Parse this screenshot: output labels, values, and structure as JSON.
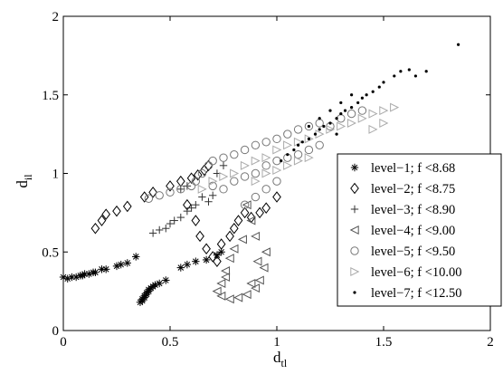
{
  "chart_data": {
    "type": "scatter",
    "xlabel": "d",
    "xlabel_sub": "tl",
    "ylabel": "d",
    "ylabel_sub": "il",
    "xlim": [
      0,
      2
    ],
    "ylim": [
      0,
      2
    ],
    "xticks": [
      "0",
      "0.5",
      "1",
      "1.5",
      "2"
    ],
    "yticks": [
      "0",
      "0.5",
      "1",
      "1.5",
      "2"
    ],
    "grid": false,
    "legend_position": "right",
    "series": [
      {
        "name": "level−1; f <8.68",
        "marker": "asterisk",
        "color": "#000000",
        "points": [
          [
            0.0,
            0.34
          ],
          [
            0.02,
            0.33
          ],
          [
            0.04,
            0.34
          ],
          [
            0.06,
            0.34
          ],
          [
            0.08,
            0.35
          ],
          [
            0.09,
            0.35
          ],
          [
            0.1,
            0.36
          ],
          [
            0.12,
            0.36
          ],
          [
            0.14,
            0.37
          ],
          [
            0.15,
            0.37
          ],
          [
            0.18,
            0.39
          ],
          [
            0.2,
            0.39
          ],
          [
            0.25,
            0.41
          ],
          [
            0.27,
            0.42
          ],
          [
            0.3,
            0.43
          ],
          [
            0.34,
            0.47
          ],
          [
            0.36,
            0.18
          ],
          [
            0.37,
            0.19
          ],
          [
            0.37,
            0.2
          ],
          [
            0.38,
            0.21
          ],
          [
            0.38,
            0.22
          ],
          [
            0.39,
            0.23
          ],
          [
            0.39,
            0.24
          ],
          [
            0.4,
            0.25
          ],
          [
            0.4,
            0.26
          ],
          [
            0.41,
            0.27
          ],
          [
            0.42,
            0.28
          ],
          [
            0.43,
            0.29
          ],
          [
            0.45,
            0.3
          ],
          [
            0.48,
            0.32
          ],
          [
            0.55,
            0.4
          ],
          [
            0.58,
            0.42
          ],
          [
            0.62,
            0.44
          ],
          [
            0.67,
            0.45
          ],
          [
            0.72,
            0.48
          ],
          [
            0.74,
            0.5
          ]
        ]
      },
      {
        "name": "level−2; f <8.75",
        "marker": "diamond",
        "color": "#000000",
        "points": [
          [
            0.15,
            0.65
          ],
          [
            0.18,
            0.7
          ],
          [
            0.2,
            0.74
          ],
          [
            0.25,
            0.76
          ],
          [
            0.3,
            0.79
          ],
          [
            0.38,
            0.85
          ],
          [
            0.42,
            0.88
          ],
          [
            0.5,
            0.92
          ],
          [
            0.55,
            0.95
          ],
          [
            0.6,
            0.97
          ],
          [
            0.63,
            0.99
          ],
          [
            0.66,
            1.02
          ],
          [
            0.68,
            1.05
          ],
          [
            0.58,
            0.8
          ],
          [
            0.62,
            0.7
          ],
          [
            0.64,
            0.6
          ],
          [
            0.67,
            0.52
          ],
          [
            0.7,
            0.47
          ],
          [
            0.72,
            0.44
          ],
          [
            0.74,
            0.55
          ],
          [
            0.78,
            0.6
          ],
          [
            0.8,
            0.65
          ],
          [
            0.82,
            0.7
          ],
          [
            0.85,
            0.75
          ],
          [
            0.88,
            0.72
          ],
          [
            0.92,
            0.75
          ],
          [
            0.95,
            0.78
          ],
          [
            1.0,
            0.85
          ]
        ]
      },
      {
        "name": "level−3; f <8.90",
        "marker": "plus",
        "color": "#333333",
        "points": [
          [
            0.42,
            0.62
          ],
          [
            0.45,
            0.64
          ],
          [
            0.48,
            0.65
          ],
          [
            0.5,
            0.68
          ],
          [
            0.52,
            0.7
          ],
          [
            0.55,
            0.72
          ],
          [
            0.58,
            0.76
          ],
          [
            0.6,
            0.78
          ],
          [
            0.62,
            0.8
          ],
          [
            0.65,
            0.85
          ],
          [
            0.68,
            0.82
          ],
          [
            0.7,
            0.86
          ],
          [
            0.55,
            0.9
          ],
          [
            0.58,
            0.92
          ],
          [
            0.72,
            1.0
          ],
          [
            0.75,
            1.05
          ]
        ]
      },
      {
        "name": "level−4; f <9.00",
        "marker": "triangle-left",
        "color": "#555555",
        "points": [
          [
            0.72,
            0.25
          ],
          [
            0.74,
            0.22
          ],
          [
            0.78,
            0.2
          ],
          [
            0.82,
            0.21
          ],
          [
            0.86,
            0.23
          ],
          [
            0.9,
            0.27
          ],
          [
            0.92,
            0.32
          ],
          [
            0.94,
            0.4
          ],
          [
            0.95,
            0.5
          ],
          [
            0.9,
            0.6
          ],
          [
            0.88,
            0.7
          ],
          [
            0.86,
            0.8
          ],
          [
            0.76,
            0.38
          ],
          [
            0.78,
            0.46
          ],
          [
            0.8,
            0.52
          ],
          [
            0.84,
            0.58
          ],
          [
            0.74,
            0.3
          ],
          [
            0.76,
            0.34
          ],
          [
            0.88,
            0.3
          ],
          [
            0.91,
            0.44
          ]
        ]
      },
      {
        "name": "level−5; f <9.50",
        "marker": "circle",
        "color": "#777777",
        "points": [
          [
            0.4,
            0.84
          ],
          [
            0.45,
            0.86
          ],
          [
            0.5,
            0.88
          ],
          [
            0.55,
            0.9
          ],
          [
            0.6,
            0.92
          ],
          [
            0.62,
            0.95
          ],
          [
            0.65,
            1.0
          ],
          [
            0.68,
            1.05
          ],
          [
            0.7,
            1.08
          ],
          [
            0.75,
            1.1
          ],
          [
            0.8,
            1.12
          ],
          [
            0.85,
            1.15
          ],
          [
            0.9,
            1.18
          ],
          [
            0.95,
            1.2
          ],
          [
            1.0,
            1.22
          ],
          [
            1.05,
            1.25
          ],
          [
            1.1,
            1.28
          ],
          [
            1.15,
            1.3
          ],
          [
            1.2,
            1.32
          ],
          [
            1.25,
            1.3
          ],
          [
            1.3,
            1.35
          ],
          [
            1.35,
            1.38
          ],
          [
            1.4,
            1.4
          ],
          [
            0.8,
            0.95
          ],
          [
            0.85,
            0.98
          ],
          [
            0.9,
            1.0
          ],
          [
            0.95,
            1.05
          ],
          [
            1.0,
            1.08
          ],
          [
            1.05,
            1.1
          ],
          [
            1.1,
            1.12
          ],
          [
            1.15,
            1.15
          ],
          [
            1.2,
            1.18
          ],
          [
            0.85,
            0.8
          ],
          [
            0.9,
            0.85
          ],
          [
            0.95,
            0.9
          ],
          [
            1.0,
            0.95
          ],
          [
            0.75,
            0.9
          ],
          [
            0.7,
            0.92
          ]
        ]
      },
      {
        "name": "level−6; f <10.00",
        "marker": "triangle-right",
        "color": "#aaaaaa",
        "points": [
          [
            0.65,
            0.9
          ],
          [
            0.7,
            0.95
          ],
          [
            0.75,
            0.98
          ],
          [
            0.8,
            1.0
          ],
          [
            0.85,
            1.05
          ],
          [
            0.9,
            1.08
          ],
          [
            0.95,
            1.1
          ],
          [
            1.0,
            1.15
          ],
          [
            1.05,
            1.18
          ],
          [
            1.1,
            1.2
          ],
          [
            1.15,
            1.22
          ],
          [
            1.2,
            1.25
          ],
          [
            1.25,
            1.28
          ],
          [
            1.3,
            1.3
          ],
          [
            1.35,
            1.32
          ],
          [
            1.4,
            1.35
          ],
          [
            1.45,
            1.38
          ],
          [
            1.5,
            1.4
          ],
          [
            1.55,
            1.42
          ],
          [
            1.5,
            1.32
          ],
          [
            1.45,
            1.28
          ],
          [
            0.9,
            0.95
          ],
          [
            0.95,
            1.0
          ],
          [
            1.0,
            1.02
          ],
          [
            1.05,
            1.05
          ],
          [
            1.1,
            1.08
          ],
          [
            1.15,
            1.1
          ]
        ]
      },
      {
        "name": "level−7; f <12.50",
        "marker": "dot",
        "color": "#000000",
        "points": [
          [
            1.02,
            1.08
          ],
          [
            1.05,
            1.12
          ],
          [
            1.08,
            1.15
          ],
          [
            1.1,
            1.18
          ],
          [
            1.12,
            1.2
          ],
          [
            1.15,
            1.22
          ],
          [
            1.18,
            1.25
          ],
          [
            1.2,
            1.28
          ],
          [
            1.22,
            1.3
          ],
          [
            1.25,
            1.32
          ],
          [
            1.28,
            1.35
          ],
          [
            1.3,
            1.38
          ],
          [
            1.32,
            1.4
          ],
          [
            1.35,
            1.42
          ],
          [
            1.38,
            1.45
          ],
          [
            1.4,
            1.48
          ],
          [
            1.42,
            1.5
          ],
          [
            1.45,
            1.52
          ],
          [
            1.48,
            1.55
          ],
          [
            1.5,
            1.58
          ],
          [
            1.55,
            1.62
          ],
          [
            1.58,
            1.65
          ],
          [
            1.62,
            1.66
          ],
          [
            1.65,
            1.62
          ],
          [
            1.7,
            1.65
          ],
          [
            1.85,
            1.82
          ],
          [
            1.2,
            1.35
          ],
          [
            1.25,
            1.4
          ],
          [
            1.3,
            1.45
          ],
          [
            1.35,
            1.5
          ],
          [
            1.15,
            1.3
          ],
          [
            1.28,
            1.25
          ]
        ]
      }
    ]
  }
}
